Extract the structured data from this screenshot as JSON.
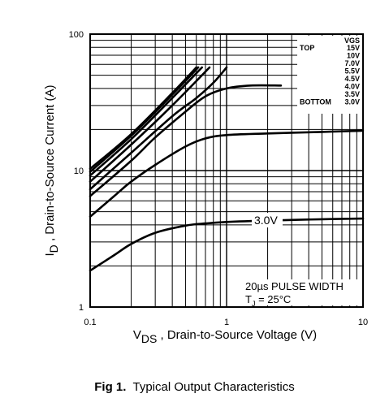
{
  "figure": {
    "caption_number": "Fig 1.",
    "caption_text": "Typical Output Characteristics"
  },
  "chart_data": {
    "type": "line",
    "xscale": "log",
    "yscale": "log",
    "xlim": [
      0.1,
      10
    ],
    "ylim": [
      1,
      100
    ],
    "grid": true,
    "x_ticks": [
      {
        "v": 0.1,
        "label": "0.1"
      },
      {
        "v": 1,
        "label": "1"
      },
      {
        "v": 10,
        "label": "10"
      }
    ],
    "y_ticks": [
      {
        "v": 1,
        "label": "1"
      },
      {
        "v": 10,
        "label": "10"
      },
      {
        "v": 100,
        "label": "100"
      }
    ],
    "xlabel": {
      "main": "V",
      "sub": "DS",
      "rest": " , Drain-to-Source Voltage (V)"
    },
    "ylabel": {
      "main": "I",
      "sub": "D",
      "rest": " , Drain-to-Source Current (A)"
    },
    "legend": {
      "header": "VGS",
      "top_label": "TOP",
      "bottom_label": "BOTTOM",
      "entries": [
        "15V",
        "10V",
        "7.0V",
        "5.5V",
        "4.5V",
        "4.0V",
        "3.5V",
        "3.0V"
      ]
    },
    "annotations": {
      "curve_label": "3.0V",
      "pulse": "20µs PULSE WIDTH",
      "tj_main": "T",
      "tj_sub": "J",
      "tj_rest": " = 25°C"
    },
    "series": [
      {
        "values": [
          [
            0.1,
            10.3
          ],
          [
            0.2,
            18.5
          ],
          [
            0.4,
            37
          ],
          [
            0.6,
            57
          ]
        ]
      },
      {
        "values": [
          [
            0.1,
            9.8
          ],
          [
            0.2,
            18.0
          ],
          [
            0.4,
            36
          ],
          [
            0.62,
            57
          ]
        ]
      },
      {
        "values": [
          [
            0.1,
            9.2
          ],
          [
            0.2,
            17.0
          ],
          [
            0.4,
            34
          ],
          [
            0.66,
            57
          ]
        ]
      },
      {
        "values": [
          [
            0.1,
            8.3
          ],
          [
            0.2,
            15.5
          ],
          [
            0.4,
            30
          ],
          [
            0.75,
            57
          ]
        ]
      },
      {
        "values": [
          [
            0.1,
            7.3
          ],
          [
            0.2,
            13.5
          ],
          [
            0.4,
            25
          ],
          [
            0.6,
            34
          ],
          [
            0.8,
            44
          ],
          [
            1.0,
            57
          ]
        ]
      },
      {
        "values": [
          [
            0.1,
            6.5
          ],
          [
            0.2,
            11.8
          ],
          [
            0.3,
            17.5
          ],
          [
            0.5,
            27
          ],
          [
            0.7,
            35
          ],
          [
            1.0,
            40
          ],
          [
            1.5,
            42
          ],
          [
            2.5,
            42
          ]
        ]
      },
      {
        "values": [
          [
            0.1,
            4.6
          ],
          [
            0.15,
            6.5
          ],
          [
            0.2,
            8.3
          ],
          [
            0.3,
            11.0
          ],
          [
            0.5,
            15.0
          ],
          [
            0.7,
            17.2
          ],
          [
            1.0,
            18.2
          ],
          [
            2,
            18.7
          ],
          [
            5,
            19.2
          ],
          [
            10,
            19.6
          ]
        ]
      },
      {
        "values": [
          [
            0.1,
            1.85
          ],
          [
            0.15,
            2.4
          ],
          [
            0.2,
            2.9
          ],
          [
            0.3,
            3.5
          ],
          [
            0.5,
            3.95
          ],
          [
            0.7,
            4.1
          ],
          [
            1.0,
            4.2
          ],
          [
            2,
            4.3
          ],
          [
            5,
            4.4
          ],
          [
            10,
            4.45
          ]
        ]
      }
    ]
  }
}
